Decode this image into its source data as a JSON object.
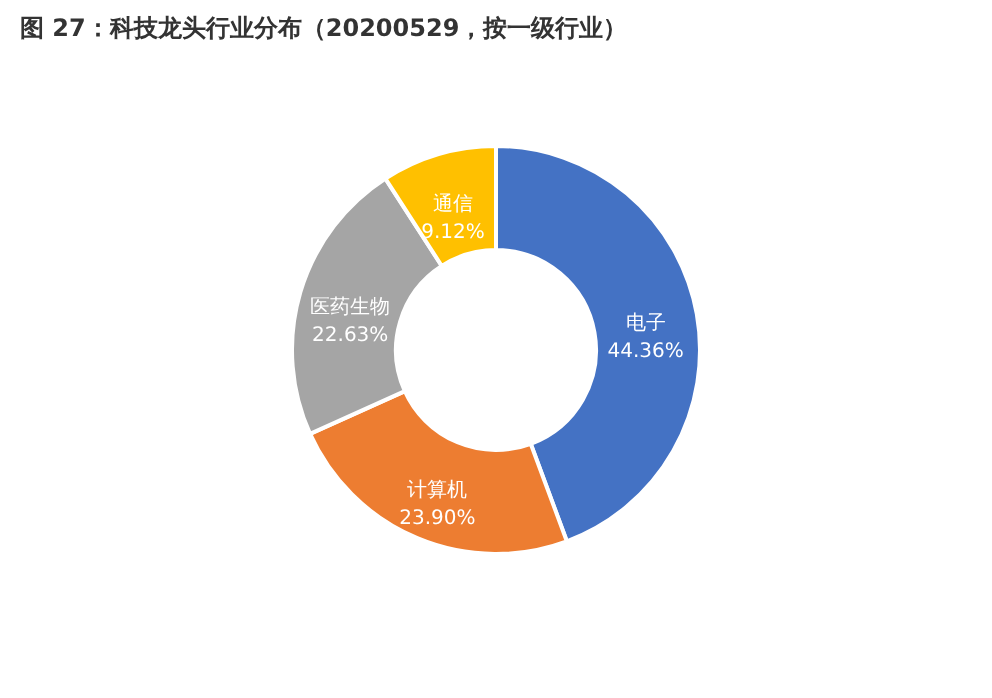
{
  "chart_data": {
    "type": "donut",
    "title": "图 27：科技龙头行业分布（20200529，按一级行业）",
    "categories": [
      "电子",
      "计算机",
      "医药生物",
      "通信"
    ],
    "values": [
      44.36,
      23.9,
      22.63,
      9.12
    ],
    "value_labels": [
      "44.36%",
      "23.90%",
      "22.63%",
      "9.12%"
    ],
    "colors": [
      "#4472c4",
      "#ed7d31",
      "#a5a5a5",
      "#ffc000"
    ],
    "legend": false
  }
}
